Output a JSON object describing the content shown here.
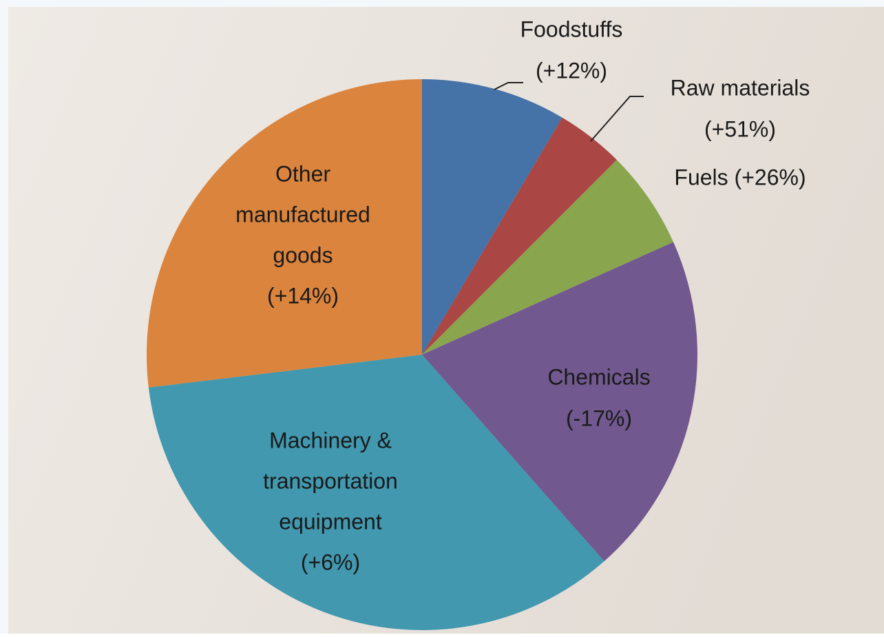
{
  "chart_data": {
    "type": "pie",
    "categories": [
      [
        "Foodstuffs",
        "(+12%)"
      ],
      [
        "Raw materials",
        "(+51%)"
      ],
      [
        "Fuels (+26%)"
      ],
      [
        "Chemicals",
        "(-17%)"
      ],
      [
        "Machinery &",
        "transportation",
        "equipment",
        "(+6%)"
      ],
      [
        "Other",
        "manufactured",
        "goods",
        "(+14%)"
      ]
    ],
    "values": [
      8.5,
      4.0,
      5.8,
      20.2,
      34.6,
      26.9
    ],
    "colors": [
      "#4572a7",
      "#aa4643",
      "#89a54e",
      "#71588f",
      "#4198af",
      "#db843d"
    ]
  }
}
